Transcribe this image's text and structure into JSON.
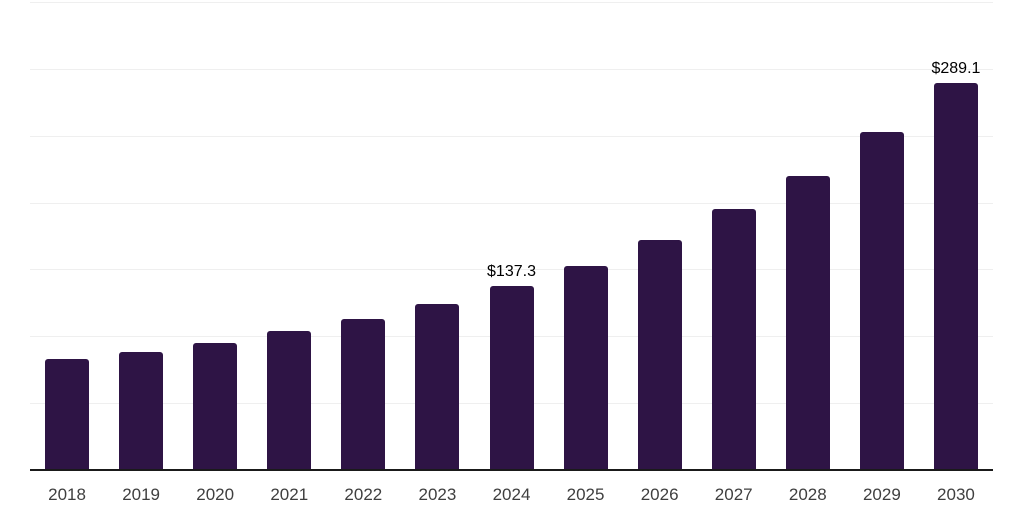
{
  "chart_data": {
    "type": "bar",
    "title": "",
    "xlabel": "",
    "ylabel": "",
    "categories": [
      "2018",
      "2019",
      "2020",
      "2021",
      "2022",
      "2023",
      "2024",
      "2025",
      "2026",
      "2027",
      "2028",
      "2029",
      "2030"
    ],
    "values": [
      83.0,
      88.4,
      95.0,
      103.9,
      113.0,
      124.2,
      137.3,
      152.7,
      172.0,
      195.2,
      220.0,
      252.9,
      289.1
    ],
    "data_labels": [
      "",
      "",
      "",
      "",
      "",
      "",
      "$137.3",
      "",
      "",
      "",
      "",
      "",
      "$289.1"
    ],
    "currency_unit": "$",
    "ylim": [
      0,
      350
    ],
    "grid_step": 50,
    "grid": "horizontal-only",
    "legend_position": "none",
    "colors": {
      "bar": "#2e1445",
      "gridline": "#efefef",
      "axis_line": "#1a1a1a",
      "tick_label": "#3f3f3f",
      "data_label": "#000000",
      "background": "#ffffff"
    }
  }
}
